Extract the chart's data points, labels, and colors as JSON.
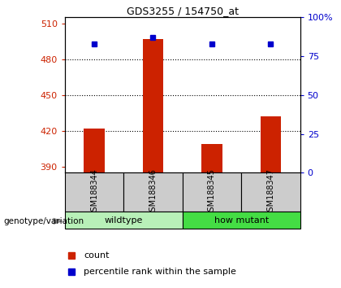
{
  "title": "GDS3255 / 154750_at",
  "samples": [
    "GSM188344",
    "GSM188346",
    "GSM188345",
    "GSM188347"
  ],
  "count_values": [
    422,
    497,
    409,
    432
  ],
  "percentile_values": [
    83,
    87,
    83,
    83
  ],
  "ylim_left": [
    385,
    515
  ],
  "yticks_left": [
    390,
    420,
    450,
    480,
    510
  ],
  "ylim_right": [
    0,
    100
  ],
  "yticks_right": [
    0,
    25,
    50,
    75,
    100
  ],
  "yticklabels_right": [
    "0",
    "25",
    "50",
    "75",
    "100%"
  ],
  "groups": [
    {
      "label": "wildtype",
      "indices": [
        0,
        1
      ],
      "color_light": "#c8f0c8",
      "color_bright": "#90ee90"
    },
    {
      "label": "how mutant",
      "indices": [
        2,
        3
      ],
      "color_light": "#44cc44",
      "color_bright": "#44cc44"
    }
  ],
  "bar_color": "#cc2200",
  "square_color": "#0000cc",
  "bar_width": 0.35,
  "tick_color_left": "#cc2200",
  "tick_color_right": "#0000cc",
  "sample_box_color": "#cccccc",
  "legend_count_color": "#cc2200",
  "legend_pct_color": "#0000cc",
  "group_colors": [
    "#b8f0b8",
    "#44dd44"
  ]
}
